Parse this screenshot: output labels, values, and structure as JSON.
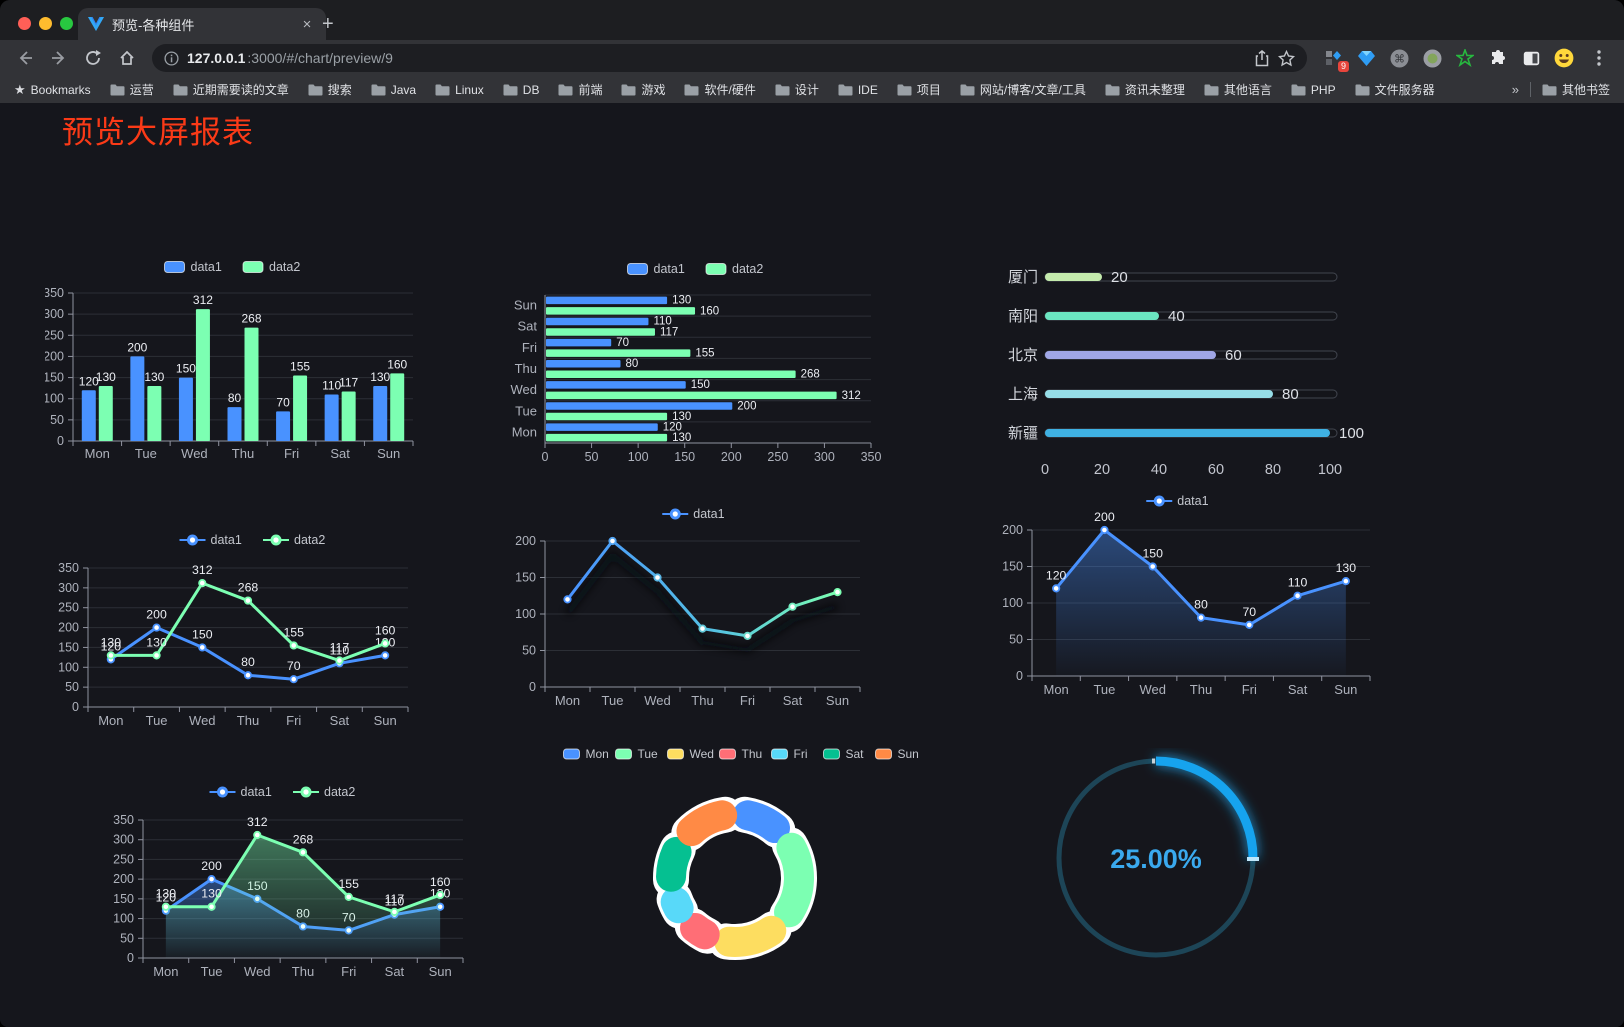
{
  "browser": {
    "traffic_lights": [
      "#ff5f57",
      "#febc2e",
      "#28c840"
    ],
    "tab": {
      "title": "预览-各种组件",
      "close": "×",
      "new_tab": "+"
    },
    "url": {
      "host": "127.0.0.1",
      "rest": ":3000/#/chart/preview/9"
    },
    "extensions": {
      "badge": "9"
    },
    "bookmarks": {
      "label": "Bookmarks",
      "folders": [
        "运营",
        "近期需要读的文章",
        "搜索",
        "Java",
        "Linux",
        "DB",
        "前端",
        "游戏",
        "软件/硬件",
        "设计",
        "IDE",
        "项目",
        "网站/博客/文章/工具",
        "资讯未整理",
        "其他语言",
        "PHP",
        "文件服务器"
      ],
      "overflow": "»",
      "other": "其他书签"
    }
  },
  "page": {
    "title": "预览大屏报表",
    "title_color": "#fb3a17",
    "background": "#15161c"
  },
  "chart_data": [
    {
      "id": "bar-grouped",
      "type": "bar",
      "legend_position": "top",
      "grid": true,
      "categories": [
        "Mon",
        "Tue",
        "Wed",
        "Thu",
        "Fri",
        "Sat",
        "Sun"
      ],
      "series": [
        {
          "name": "data1",
          "color": "#4992ff",
          "values": [
            120,
            200,
            150,
            80,
            70,
            110,
            130
          ]
        },
        {
          "name": "data2",
          "color": "#7cffb2",
          "values": [
            130,
            130,
            312,
            268,
            155,
            117,
            160
          ]
        }
      ],
      "ylim": [
        0,
        350
      ],
      "yticks": [
        0,
        50,
        100,
        150,
        200,
        250,
        300,
        350
      ],
      "data_labels": true
    },
    {
      "id": "bar-horizontal",
      "type": "bar",
      "orientation": "horizontal",
      "legend_position": "top",
      "categories_top_to_bottom": [
        "Sun",
        "Sat",
        "Fri",
        "Thu",
        "Wed",
        "Tue",
        "Mon"
      ],
      "series": [
        {
          "name": "data1",
          "color": "#4992ff",
          "values": [
            120,
            200,
            150,
            80,
            70,
            110,
            130
          ]
        },
        {
          "name": "data2",
          "color": "#7cffb2",
          "values": [
            130,
            130,
            312,
            268,
            155,
            117,
            160
          ]
        }
      ],
      "xlim": [
        0,
        350
      ],
      "xticks": [
        0,
        50,
        100,
        150,
        200,
        250,
        300,
        350
      ],
      "data_labels": true
    },
    {
      "id": "progress",
      "type": "bar",
      "orientation": "horizontal-progress",
      "categories": [
        "厦门",
        "南阳",
        "北京",
        "上海",
        "新疆"
      ],
      "values": [
        20,
        40,
        60,
        80,
        100
      ],
      "colors": [
        "#c4ebad",
        "#6be6c1",
        "#a0a7e6",
        "#96dee8",
        "#3fb1e3"
      ],
      "track_color": "#14151a",
      "track_border": "#41454e",
      "xlim": [
        0,
        100
      ],
      "xticks": [
        0,
        20,
        40,
        60,
        80,
        100
      ],
      "data_labels": true
    },
    {
      "id": "line-dual",
      "type": "line",
      "legend_position": "top",
      "categories": [
        "Mon",
        "Tue",
        "Wed",
        "Thu",
        "Fri",
        "Sat",
        "Sun"
      ],
      "series": [
        {
          "name": "data1",
          "color": "#4992ff",
          "values": [
            120,
            200,
            150,
            80,
            70,
            110,
            130
          ]
        },
        {
          "name": "data2",
          "color": "#7cffb2",
          "values": [
            130,
            130,
            312,
            268,
            155,
            117,
            160
          ]
        }
      ],
      "ylim": [
        0,
        350
      ],
      "yticks": [
        0,
        50,
        100,
        150,
        200,
        250,
        300,
        350
      ],
      "data_labels": true
    },
    {
      "id": "line-gradient",
      "type": "line",
      "legend_position": "top",
      "shadow": true,
      "categories": [
        "Mon",
        "Tue",
        "Wed",
        "Thu",
        "Fri",
        "Sat",
        "Sun"
      ],
      "series": [
        {
          "name": "data1",
          "gradient": [
            "#4992ff",
            "#7cffb2"
          ],
          "values": [
            120,
            200,
            150,
            80,
            70,
            110,
            130
          ]
        }
      ],
      "ylim": [
        0,
        200
      ],
      "yticks": [
        0,
        50,
        100,
        150,
        200
      ],
      "data_labels": false
    },
    {
      "id": "area-single",
      "type": "area",
      "legend_position": "top",
      "categories": [
        "Mon",
        "Tue",
        "Wed",
        "Thu",
        "Fri",
        "Sat",
        "Sun"
      ],
      "series": [
        {
          "name": "data1",
          "color": "#4992ff",
          "values": [
            120,
            200,
            150,
            80,
            70,
            110,
            130
          ]
        }
      ],
      "ylim": [
        0,
        200
      ],
      "yticks": [
        0,
        50,
        100,
        150,
        200
      ],
      "data_labels": true
    },
    {
      "id": "area-dual",
      "type": "area",
      "legend_position": "top",
      "categories": [
        "Mon",
        "Tue",
        "Wed",
        "Thu",
        "Fri",
        "Sat",
        "Sun"
      ],
      "series": [
        {
          "name": "data1",
          "color": "#4992ff",
          "values": [
            120,
            200,
            150,
            80,
            70,
            110,
            130
          ]
        },
        {
          "name": "data2",
          "color": "#7cffb2",
          "values": [
            130,
            130,
            312,
            268,
            155,
            117,
            160
          ]
        }
      ],
      "ylim": [
        0,
        350
      ],
      "yticks": [
        0,
        50,
        100,
        150,
        200,
        250,
        300,
        350
      ],
      "data_labels": true
    },
    {
      "id": "donut",
      "type": "pie",
      "legend_position": "top",
      "labels": [
        "Mon",
        "Tue",
        "Wed",
        "Thu",
        "Fri",
        "Sat",
        "Sun"
      ],
      "values": [
        120,
        200,
        150,
        80,
        70,
        110,
        130
      ],
      "colors": [
        "#4992ff",
        "#7cffb2",
        "#fddd60",
        "#ff6e76",
        "#58d9f9",
        "#05c091",
        "#ff8a45"
      ],
      "inner_radius": 48,
      "outer_radius": 80,
      "border_color": "#ffffff"
    },
    {
      "id": "gauge",
      "type": "gauge",
      "value": 25,
      "max": 100,
      "display": "25.00%",
      "color": "#17a3ee",
      "track_color": "#1d4557",
      "text_color": "#3aa9ee"
    }
  ]
}
